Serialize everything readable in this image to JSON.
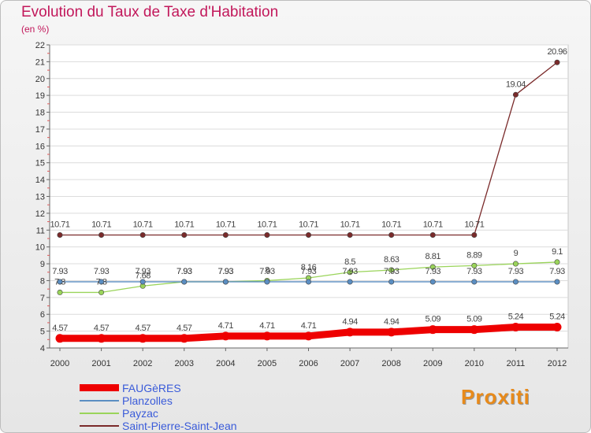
{
  "chart_data": {
    "type": "line",
    "title": "Evolution du Taux de Taxe d'Habitation",
    "subtitle": "(en %)",
    "xlabel": "",
    "ylabel": "",
    "ylim": [
      4,
      22
    ],
    "yticks": [
      "4",
      "5",
      "6",
      "7",
      "8",
      "9",
      "10",
      "11",
      "12",
      "13",
      "14",
      "15",
      "16",
      "17",
      "18",
      "19",
      "20",
      "21",
      "22"
    ],
    "categories": [
      "2000",
      "2001",
      "2002",
      "2003",
      "2004",
      "2005",
      "2006",
      "2007",
      "2008",
      "2009",
      "2010",
      "2011",
      "2012"
    ],
    "series": [
      {
        "name": "FAUGèRES",
        "color": "#ee0000",
        "width": 9,
        "values": [
          4.57,
          4.57,
          4.57,
          4.57,
          4.71,
          4.71,
          4.71,
          4.94,
          4.94,
          5.09,
          5.09,
          5.24,
          5.24
        ],
        "labels": [
          "4.57",
          "4.57",
          "4.57",
          "4.57",
          "4.71",
          "4.71",
          "4.71",
          "4.94",
          "4.94",
          "5.09",
          "5.09",
          "5.24",
          "5.24"
        ]
      },
      {
        "name": "Planzolles",
        "color": "#5b8ec2",
        "width": 1.3,
        "values": [
          7.93,
          7.93,
          7.93,
          7.93,
          7.93,
          7.93,
          7.93,
          7.93,
          7.93,
          7.93,
          7.93,
          7.93,
          7.93
        ],
        "labels": [
          "7.93",
          "7.93",
          "7.93",
          "7.93",
          "7.93",
          "7.93",
          "7.93",
          "7.93",
          "7.93",
          "7.93",
          "7.93",
          "7.93",
          "7.93"
        ]
      },
      {
        "name": "Payzac",
        "color": "#9ad45a",
        "width": 1.3,
        "values": [
          7.3,
          7.3,
          7.68,
          7.93,
          7.93,
          8,
          8.16,
          8.5,
          8.63,
          8.81,
          8.89,
          9,
          9.1
        ],
        "labels": [
          "7.3",
          "7.3",
          "7.68",
          "7.93",
          "7.93",
          "8",
          "8.16",
          "8.5",
          "8.63",
          "8.81",
          "8.89",
          "9",
          "9.1"
        ]
      },
      {
        "name": "Saint-Pierre-Saint-Jean",
        "color": "#7a2a2a",
        "width": 1.3,
        "values": [
          10.71,
          10.71,
          10.71,
          10.71,
          10.71,
          10.71,
          10.71,
          10.71,
          10.71,
          10.71,
          10.71,
          19.04,
          20.96
        ],
        "labels": [
          "10.71",
          "10.71",
          "10.71",
          "10.71",
          "10.71",
          "10.71",
          "10.71",
          "10.71",
          "10.71",
          "10.71",
          "10.71",
          "19.04",
          "20.96"
        ]
      }
    ]
  },
  "legend": {
    "items": [
      {
        "label": "FAUGèRES",
        "color": "#ee0000"
      },
      {
        "label": "Planzolles",
        "color": "#5b8ec2"
      },
      {
        "label": "Payzac",
        "color": "#9ad45a"
      },
      {
        "label": "Saint-Pierre-Saint-Jean",
        "color": "#7a2a2a"
      }
    ]
  },
  "logo": {
    "text": "Proxiti"
  }
}
